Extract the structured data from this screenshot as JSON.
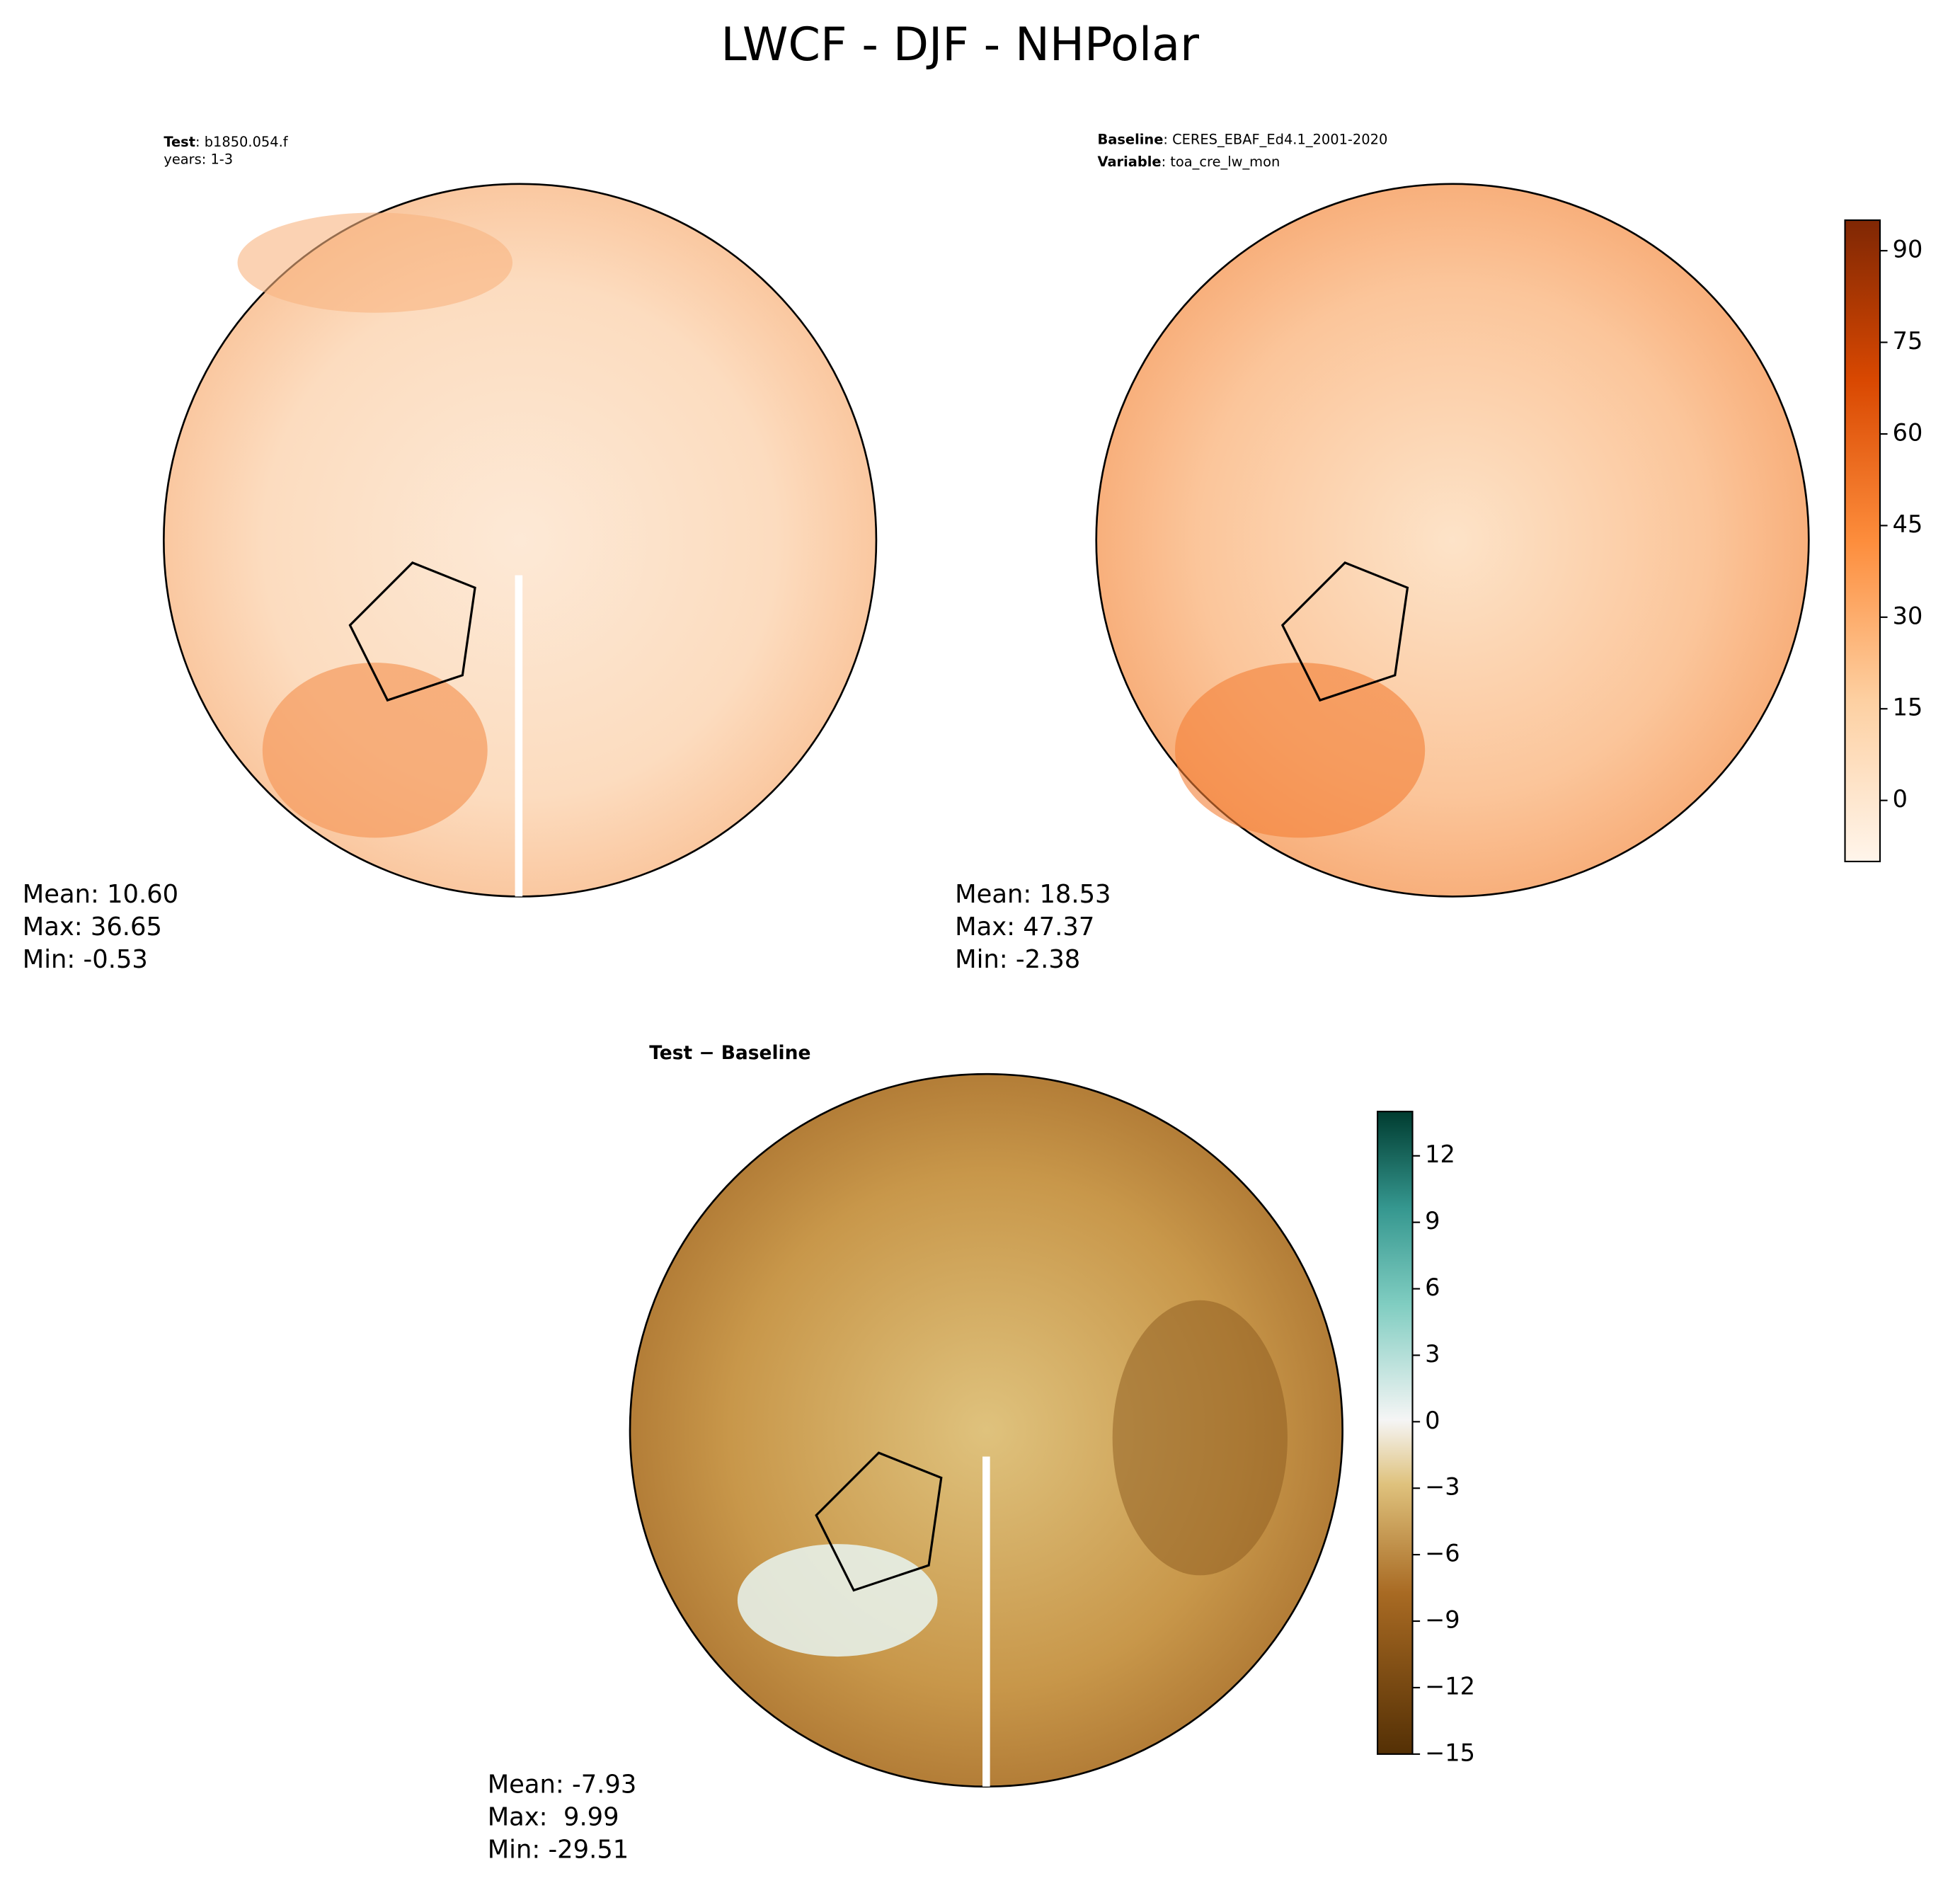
{
  "chart_data": [
    {
      "type": "map",
      "title": "LWCF - DJF - NHPolar",
      "label_key_1": "Test",
      "label_val_1": ": b1850.054.f",
      "label_line_2": "years: 1-3",
      "stats": [
        "Mean: 10.60",
        "Max: 36.65",
        "Min: -0.53"
      ]
    },
    {
      "type": "map",
      "label_key_1": "Baseline",
      "label_val_1": ": CERES_EBAF_Ed4.1_2001-2020",
      "label_key_2": "Variable",
      "label_val_2": ": toa_cre_lw_mon",
      "stats": [
        "Mean: 18.53",
        "Max: 47.37",
        "Min: -2.38"
      ],
      "ylim": [
        -10,
        95
      ],
      "yticks": [
        0,
        15,
        30,
        45,
        60,
        75,
        90
      ]
    },
    {
      "type": "map",
      "subtitle": "Test − Baseline",
      "stats": [
        "Mean: -7.93",
        "Max:  9.99",
        "Min: -29.51"
      ],
      "ylim": [
        -15,
        14
      ],
      "yticks": [
        {
          "value": -15,
          "label": "−15"
        },
        {
          "value": -12,
          "label": "−12"
        },
        {
          "value": -9,
          "label": "−9"
        },
        {
          "value": -6,
          "label": "−6"
        },
        {
          "value": -3,
          "label": "−3"
        },
        0,
        3,
        6,
        9,
        12
      ]
    }
  ]
}
